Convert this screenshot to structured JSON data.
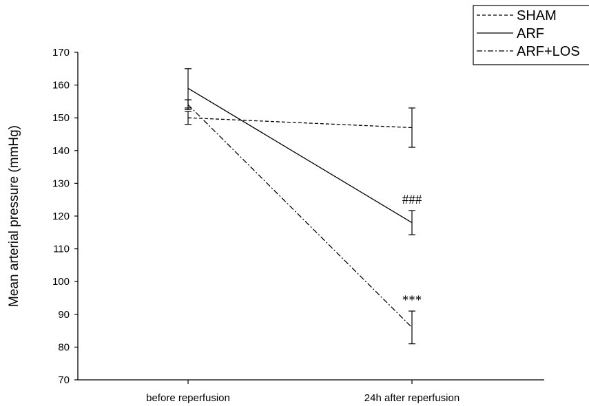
{
  "chart_data": {
    "type": "line",
    "title": "",
    "xlabel": "",
    "ylabel": "Mean arterial pressure (mmHg)",
    "categories": [
      "before reperfusion",
      "24h after reperfusion"
    ],
    "ylim": [
      70,
      170
    ],
    "yticks": [
      70,
      80,
      90,
      100,
      110,
      120,
      130,
      140,
      150,
      160,
      170
    ],
    "grid": false,
    "legend_position": "top-right",
    "series": [
      {
        "name": "SHAM",
        "line_style": "dashed",
        "color": "#000000",
        "values": [
          150,
          147
        ],
        "errors": [
          2,
          6
        ]
      },
      {
        "name": "ARF",
        "line_style": "solid",
        "color": "#000000",
        "values": [
          159,
          118
        ],
        "errors": [
          6,
          3.7
        ]
      },
      {
        "name": "ARF+LOS",
        "line_style": "dashdot",
        "color": "#000000",
        "values": [
          154,
          86
        ],
        "errors": [
          1.5,
          5
        ]
      }
    ],
    "annotations": [
      {
        "text": "###",
        "category": "24h after reperfusion",
        "series": "ARF"
      },
      {
        "text": "***",
        "category": "24h after reperfusion",
        "series": "ARF+LOS"
      }
    ]
  }
}
